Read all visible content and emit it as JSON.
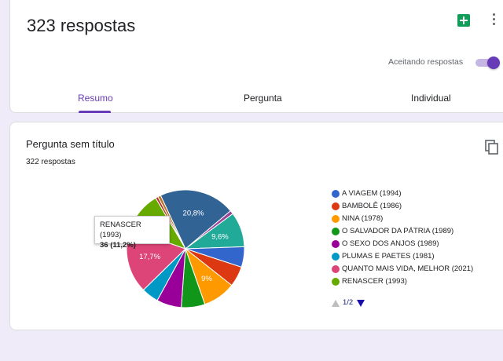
{
  "summary": {
    "responses_title": "323 respostas",
    "accepting_label": "Aceitando respostas",
    "accepting_on": true
  },
  "tabs": [
    {
      "label": "Resumo",
      "active": true
    },
    {
      "label": "Pergunta",
      "active": false
    },
    {
      "label": "Individual",
      "active": false
    }
  ],
  "question": {
    "title": "Pergunta sem título",
    "count": "322 respostas",
    "pager": "1/2",
    "tooltip": {
      "title": "RENASCER (1993)",
      "value": "36 (11,2%)"
    }
  },
  "colors": {
    "accent": "#673ab7",
    "sheets": "#0f9d58"
  },
  "icons": {
    "sheets": "sheets-icon",
    "more": "more-vert-icon",
    "copy": "copy-icon"
  },
  "chart_data": {
    "type": "pie",
    "legend": [
      {
        "label": "A VIAGEM (1994)",
        "color": "#3366cc"
      },
      {
        "label": "BAMBOLÊ (1986)",
        "color": "#dc3912"
      },
      {
        "label": "NINA (1978)",
        "color": "#ff9900"
      },
      {
        "label": "O SALVADOR DA PÁTRIA (1989)",
        "color": "#109618"
      },
      {
        "label": "O SEXO DOS ANJOS (1989)",
        "color": "#990099"
      },
      {
        "label": "PLUMAS E PAETES (1981)",
        "color": "#0099c6"
      },
      {
        "label": "QUANTO MAIS VIDA, MELHOR (2021)",
        "color": "#dd4477"
      },
      {
        "label": "RENASCER (1993)",
        "color": "#66aa00"
      }
    ],
    "slices": [
      {
        "value": 20.8,
        "color": "#316395",
        "label": "20,8%"
      },
      {
        "value": 1.0,
        "color": "#994499",
        "label": ""
      },
      {
        "value": 9.6,
        "color": "#22aa99",
        "label": "9,6%"
      },
      {
        "value": 5.6,
        "color": "#3366cc",
        "label": ""
      },
      {
        "value": 5.6,
        "color": "#dc3912",
        "label": ""
      },
      {
        "value": 9.0,
        "color": "#ff9900",
        "label": "9%"
      },
      {
        "value": 6.5,
        "color": "#109618",
        "label": ""
      },
      {
        "value": 6.8,
        "color": "#990099",
        "label": ""
      },
      {
        "value": 4.7,
        "color": "#0099c6",
        "label": ""
      },
      {
        "value": 17.7,
        "color": "#dd4477",
        "label": "17,7%"
      },
      {
        "value": 11.2,
        "color": "#66aa00",
        "label": ""
      },
      {
        "value": 0.7,
        "color": "#b82e2e",
        "label": ""
      },
      {
        "value": 0.8,
        "color": "#b77322",
        "label": ""
      }
    ]
  }
}
